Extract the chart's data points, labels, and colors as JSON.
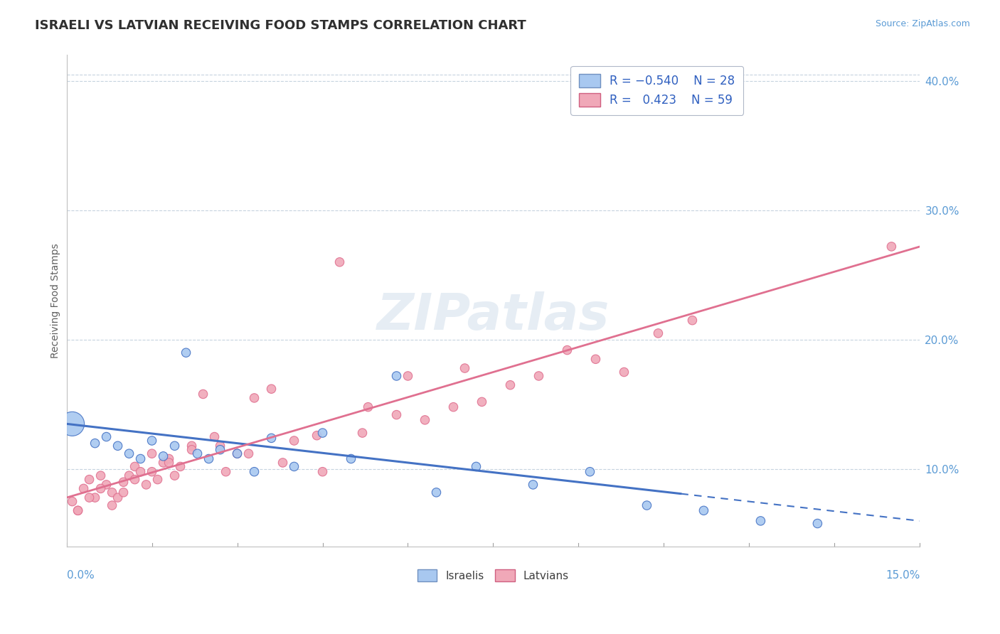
{
  "title": "ISRAELI VS LATVIAN RECEIVING FOOD STAMPS CORRELATION CHART",
  "source": "Source: ZipAtlas.com",
  "ylabel": "Receiving Food Stamps",
  "ylabel_right_ticks": [
    "40.0%",
    "30.0%",
    "20.0%",
    "10.0%"
  ],
  "ylabel_right_vals": [
    0.4,
    0.3,
    0.2,
    0.1
  ],
  "xmin": 0.0,
  "xmax": 0.15,
  "ymin": 0.04,
  "ymax": 0.42,
  "color_israeli": "#a8c8f0",
  "color_latvian": "#f0a8b8",
  "color_blue_line": "#4472c4",
  "color_pink_line": "#e07090",
  "color_title": "#404040",
  "color_axis": "#a0a0a0",
  "color_grid": "#b8c8d8",
  "watermark": "ZIPatlas",
  "israeli_x": [
    0.001,
    0.005,
    0.007,
    0.009,
    0.011,
    0.013,
    0.015,
    0.017,
    0.019,
    0.021,
    0.023,
    0.025,
    0.027,
    0.03,
    0.033,
    0.036,
    0.04,
    0.045,
    0.05,
    0.058,
    0.065,
    0.072,
    0.082,
    0.092,
    0.102,
    0.112,
    0.122,
    0.132
  ],
  "israeli_y": [
    0.135,
    0.12,
    0.125,
    0.118,
    0.112,
    0.108,
    0.122,
    0.11,
    0.118,
    0.19,
    0.112,
    0.108,
    0.115,
    0.112,
    0.098,
    0.124,
    0.102,
    0.128,
    0.108,
    0.172,
    0.082,
    0.102,
    0.088,
    0.098,
    0.072,
    0.068,
    0.06,
    0.058
  ],
  "latvian_x": [
    0.001,
    0.002,
    0.003,
    0.004,
    0.005,
    0.006,
    0.007,
    0.008,
    0.009,
    0.01,
    0.011,
    0.012,
    0.013,
    0.014,
    0.015,
    0.016,
    0.017,
    0.018,
    0.019,
    0.02,
    0.022,
    0.024,
    0.026,
    0.028,
    0.03,
    0.033,
    0.036,
    0.04,
    0.044,
    0.048,
    0.053,
    0.058,
    0.063,
    0.068,
    0.073,
    0.078,
    0.083,
    0.088,
    0.093,
    0.098,
    0.104,
    0.11,
    0.002,
    0.004,
    0.006,
    0.008,
    0.01,
    0.012,
    0.015,
    0.018,
    0.022,
    0.027,
    0.032,
    0.038,
    0.045,
    0.052,
    0.06,
    0.07,
    0.145
  ],
  "latvian_y": [
    0.075,
    0.068,
    0.085,
    0.092,
    0.078,
    0.095,
    0.088,
    0.082,
    0.078,
    0.09,
    0.095,
    0.102,
    0.098,
    0.088,
    0.112,
    0.092,
    0.105,
    0.108,
    0.095,
    0.102,
    0.118,
    0.158,
    0.125,
    0.098,
    0.112,
    0.155,
    0.162,
    0.122,
    0.126,
    0.26,
    0.148,
    0.142,
    0.138,
    0.148,
    0.152,
    0.165,
    0.172,
    0.192,
    0.185,
    0.175,
    0.205,
    0.215,
    0.068,
    0.078,
    0.085,
    0.072,
    0.082,
    0.092,
    0.098,
    0.105,
    0.115,
    0.118,
    0.112,
    0.105,
    0.098,
    0.128,
    0.172,
    0.178,
    0.272
  ],
  "israeli_sizes": [
    600,
    80,
    80,
    80,
    80,
    80,
    80,
    80,
    80,
    80,
    80,
    80,
    80,
    80,
    80,
    80,
    80,
    80,
    80,
    80,
    80,
    80,
    80,
    80,
    80,
    80,
    80,
    80
  ],
  "latvian_sizes": [
    80,
    80,
    80,
    80,
    80,
    80,
    80,
    80,
    80,
    80,
    80,
    80,
    80,
    80,
    80,
    80,
    80,
    80,
    80,
    80,
    80,
    80,
    80,
    80,
    80,
    80,
    80,
    80,
    80,
    80,
    80,
    80,
    80,
    80,
    80,
    80,
    80,
    80,
    80,
    80,
    80,
    80,
    80,
    80,
    80,
    80,
    80,
    80,
    80,
    80,
    80,
    80,
    80,
    80,
    80,
    80,
    80,
    80,
    80
  ],
  "blue_line_solid_end": 0.108,
  "trend_blue_x0": 0.0,
  "trend_blue_y0": 0.135,
  "trend_blue_x1": 0.15,
  "trend_blue_y1": 0.06,
  "trend_pink_x0": 0.0,
  "trend_pink_y0": 0.078,
  "trend_pink_x1": 0.15,
  "trend_pink_y1": 0.272
}
